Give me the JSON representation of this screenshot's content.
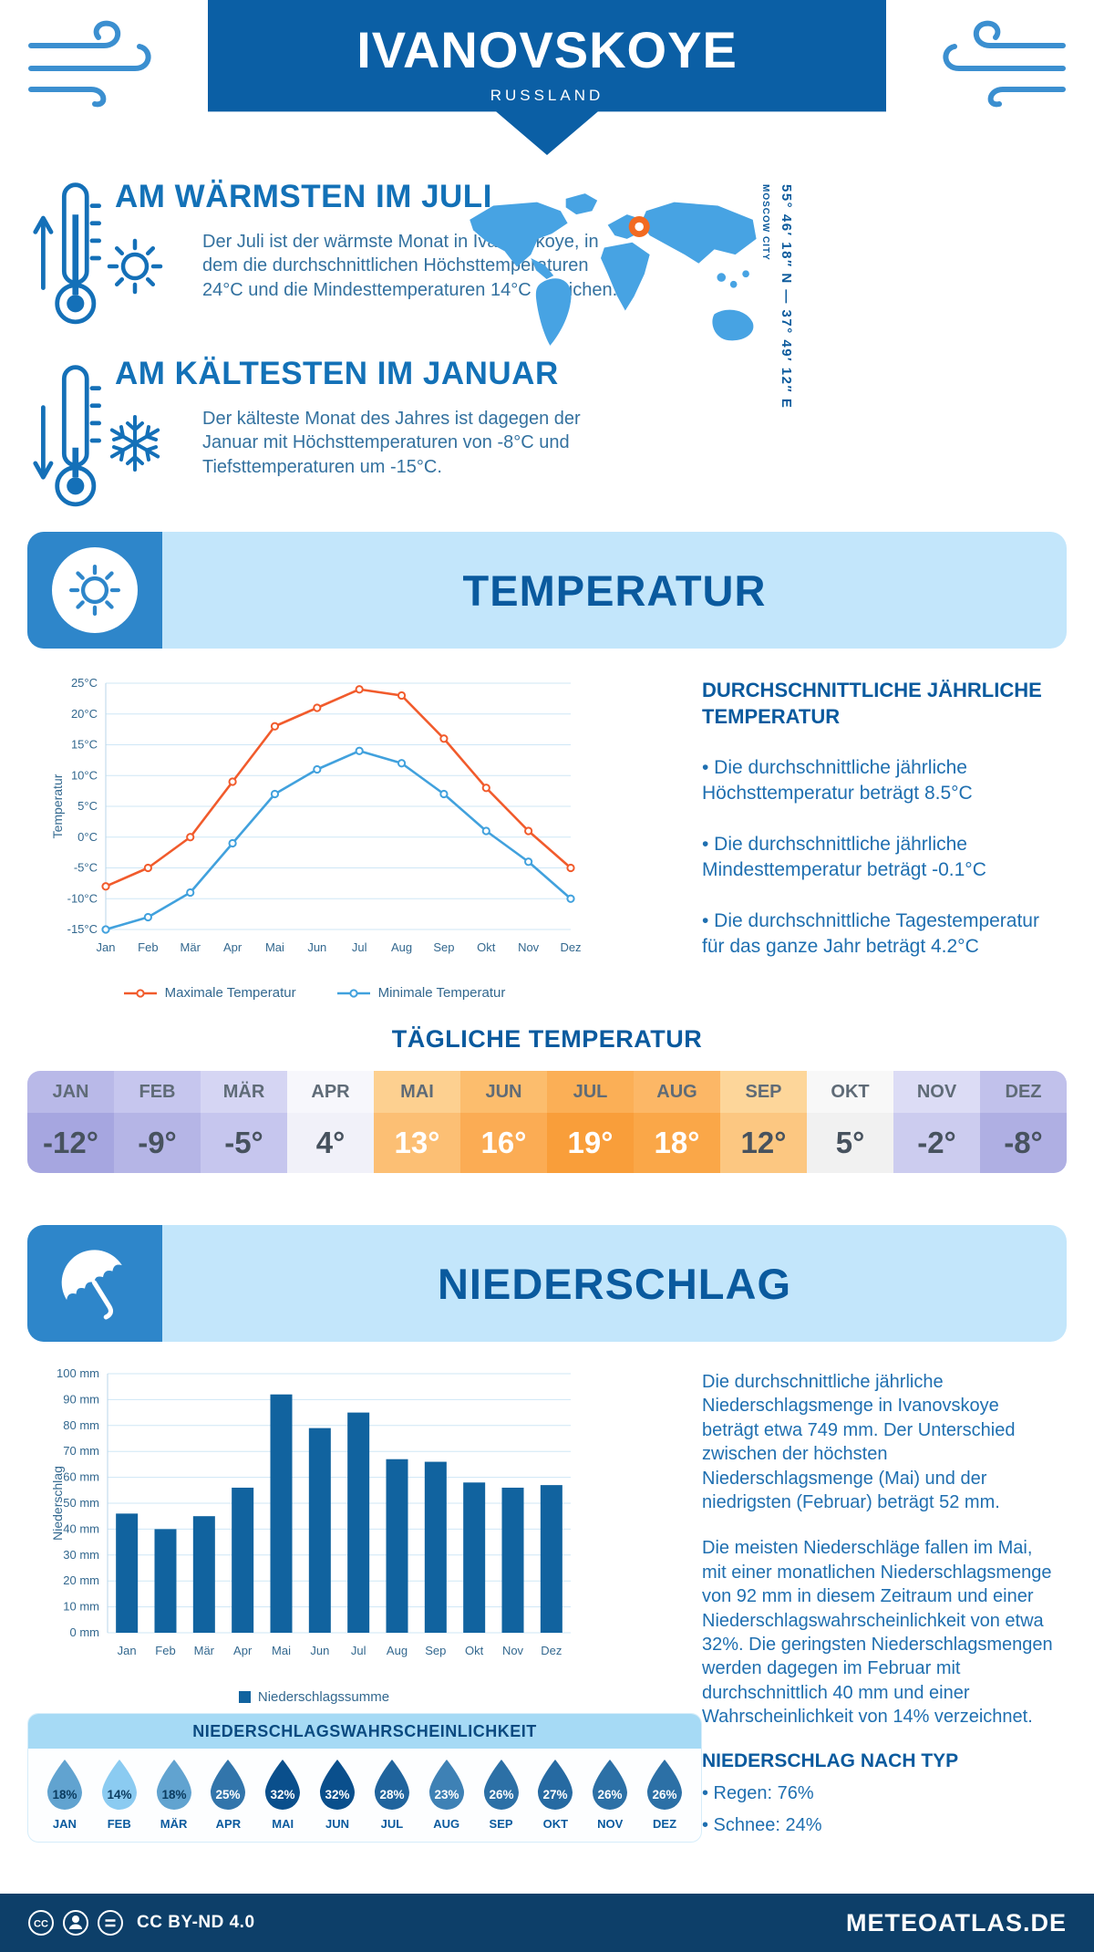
{
  "header": {
    "title": "IVANOVSKOYE",
    "subtitle": "RUSSLAND"
  },
  "intro": {
    "warm_title": "AM WÄRMSTEN IM JULI",
    "warm_text": "Der Juli ist der wärmste Monat in Ivanovskoye, in dem die durchschnittlichen Höchsttemperaturen 24°C und die Mindesttemperaturen 14°C erreichen.",
    "cold_title": "AM KÄLTESTEN IM JANUAR",
    "cold_text": "Der kälteste Monat des Jahres ist dagegen der Januar mit Höchsttemperaturen von -8°C und Tiefsttemperaturen um -15°C.",
    "coordinates": "55° 46′ 18″ N — 37° 49′ 12″ E",
    "location_label": "MOSCOW CITY"
  },
  "temperature_section": {
    "banner": "TEMPERATUR",
    "annual_title": "DURCHSCHNITTLICHE JÄHRLICHE TEMPERATUR",
    "bullets": [
      "• Die durchschnittliche jährliche Höchsttemperatur beträgt 8.5°C",
      "• Die durchschnittliche jährliche Mindesttemperatur beträgt -0.1°C",
      "• Die durchschnittliche Tagestemperatur für das ganze Jahr beträgt 4.2°C"
    ],
    "daily_title": "TÄGLICHE TEMPERATUR",
    "daily": {
      "months": [
        "JAN",
        "FEB",
        "MÄR",
        "APR",
        "MAI",
        "JUN",
        "JUL",
        "AUG",
        "SEP",
        "OKT",
        "NOV",
        "DEZ"
      ],
      "values": [
        "-12°",
        "-9°",
        "-5°",
        "4°",
        "13°",
        "16°",
        "19°",
        "18°",
        "12°",
        "5°",
        "-2°",
        "-8°"
      ],
      "header_colors": [
        "#b9b9e8",
        "#c6c6ee",
        "#d5d5f3",
        "#f7f7fc",
        "#fdd090",
        "#fcbd6d",
        "#fbaf56",
        "#fcb766",
        "#fdd69a",
        "#f8f8f8",
        "#dcdcf5",
        "#c1c1eb"
      ],
      "value_colors": [
        "#a6a6e0",
        "#b5b5e6",
        "#c6c6ee",
        "#f1f1f9",
        "#fcbf74",
        "#fbac54",
        "#f99e3a",
        "#faa748",
        "#fcc781",
        "#f1f1f1",
        "#ccccef",
        "#afafe3"
      ],
      "white_text": [
        false,
        false,
        false,
        false,
        true,
        true,
        true,
        true,
        false,
        false,
        false,
        false
      ]
    }
  },
  "precipitation_section": {
    "banner": "NIEDERSCHLAG",
    "paragraphs": [
      "Die durchschnittliche jährliche Niederschlagsmenge in Ivanovskoye beträgt etwa 749 mm. Der Unterschied zwischen der höchsten Niederschlagsmenge (Mai) und der niedrigsten (Februar) beträgt 52 mm.",
      "Die meisten Niederschläge fallen im Mai, mit einer monatlichen Niederschlagsmenge von 92 mm in diesem Zeitraum und einer Niederschlagswahrscheinlichkeit von etwa 32%. Die geringsten Niederschlagsmengen werden dagegen im Februar mit durchschnittlich 40 mm und einer Wahrscheinlichkeit von 14% verzeichnet."
    ],
    "type_title": "NIEDERSCHLAG NACH TYP",
    "type_bullets": [
      "• Regen: 76%",
      "• Schnee: 24%"
    ],
    "probability": {
      "title": "NIEDERSCHLAGSWAHRSCHEINLICHKEIT",
      "months": [
        "JAN",
        "FEB",
        "MÄR",
        "APR",
        "MAI",
        "JUN",
        "JUL",
        "AUG",
        "SEP",
        "OKT",
        "NOV",
        "DEZ"
      ],
      "values": [
        18,
        14,
        18,
        25,
        32,
        32,
        28,
        23,
        26,
        27,
        26,
        26
      ]
    }
  },
  "footer": {
    "license": "CC BY-ND 4.0",
    "site": "METEOATLAS.DE"
  },
  "chart_data": [
    {
      "type": "line",
      "title": "",
      "categories": [
        "Jan",
        "Feb",
        "Mär",
        "Apr",
        "Mai",
        "Jun",
        "Jul",
        "Aug",
        "Sep",
        "Okt",
        "Nov",
        "Dez"
      ],
      "series": [
        {
          "name": "Maximale Temperatur",
          "color": "#f15b2c",
          "values": [
            -8,
            -5,
            0,
            9,
            18,
            21,
            24,
            23,
            16,
            8,
            1,
            -5
          ]
        },
        {
          "name": "Minimale Temperatur",
          "color": "#41a1dd",
          "values": [
            -15,
            -13,
            -9,
            -1,
            7,
            11,
            14,
            12,
            7,
            1,
            -4,
            -10
          ]
        }
      ],
      "xlabel": "",
      "ylabel": "Temperatur",
      "ylim": [
        -15,
        25
      ],
      "ytick_step": 5,
      "ytick_suffix": "°C",
      "grid": true,
      "legend_position": "bottom"
    },
    {
      "type": "bar",
      "title": "",
      "categories": [
        "Jan",
        "Feb",
        "Mär",
        "Apr",
        "Mai",
        "Jun",
        "Jul",
        "Aug",
        "Sep",
        "Okt",
        "Nov",
        "Dez"
      ],
      "values": [
        46,
        40,
        45,
        56,
        92,
        79,
        85,
        67,
        66,
        58,
        56,
        57
      ],
      "series_name": "Niederschlagssumme",
      "color": "#11639f",
      "xlabel": "",
      "ylabel": "Niederschlag",
      "ylim": [
        0,
        100
      ],
      "ytick_step": 10,
      "ytick_suffix": " mm",
      "grid": true,
      "legend_position": "bottom"
    }
  ]
}
